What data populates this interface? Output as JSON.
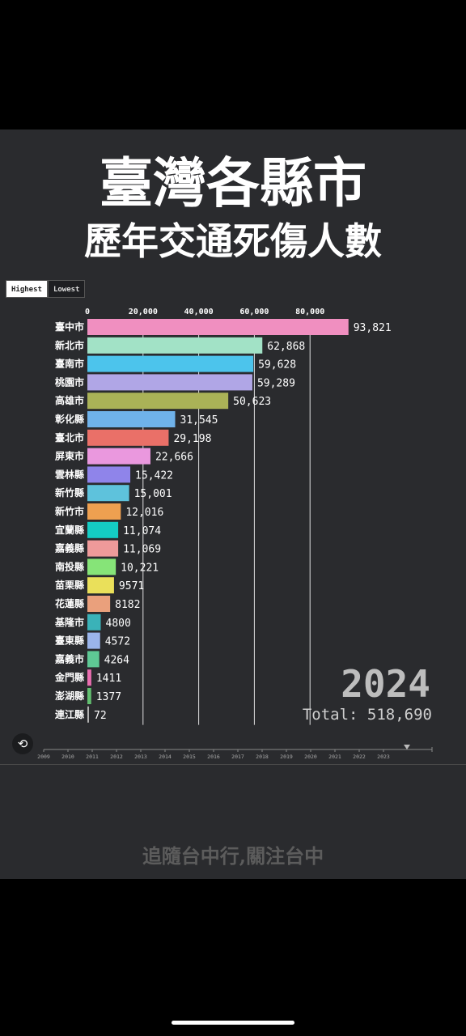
{
  "title_line1": "臺灣各縣市",
  "title_line2": "歷年交通死傷人數",
  "toggle": {
    "highest": "Highest",
    "lowest": "Lowest"
  },
  "year": "2024",
  "total": "Total: 518,690",
  "replay_icon": "replay-icon",
  "footer": "追隨台中行,關注台中",
  "chart_data": {
    "type": "bar",
    "orientation": "horizontal",
    "categories": [
      "臺中市",
      "新北市",
      "臺南市",
      "桃園市",
      "高雄市",
      "彰化縣",
      "臺北市",
      "屏東市",
      "雲林縣",
      "新竹縣",
      "新竹市",
      "宜蘭縣",
      "嘉義縣",
      "南投縣",
      "苗栗縣",
      "花蓮縣",
      "基隆市",
      "臺東縣",
      "嘉義市",
      "金門縣",
      "澎湖縣",
      "連江縣"
    ],
    "values": [
      93821,
      62868,
      59628,
      59289,
      50623,
      31545,
      29198,
      22666,
      15422,
      15001,
      12016,
      11074,
      11069,
      10221,
      9571,
      8182,
      4800,
      4572,
      4264,
      1411,
      1377,
      72
    ],
    "value_labels": [
      "93,821",
      "62,868",
      "59,628",
      "59,289",
      "50,623",
      "31,545",
      "29,198",
      "22,666",
      "15,422",
      "15,001",
      "12,016",
      "11,074",
      "11,069",
      "10,221",
      "9571",
      "8182",
      "4800",
      "4572",
      "4264",
      "1411",
      "1377",
      "72"
    ],
    "colors": [
      "#f08fc0",
      "#a2e2c6",
      "#4cc4ec",
      "#b0a6e6",
      "#aab257",
      "#6fb2ea",
      "#ea7068",
      "#ea98de",
      "#8f84ea",
      "#5ec2dc",
      "#eea050",
      "#14ccc4",
      "#ee9a9a",
      "#86e478",
      "#eae05a",
      "#eaa07c",
      "#3ab2b8",
      "#9ab4ea",
      "#5ec894",
      "#ea6eb0",
      "#62c070",
      "#b0b0b0"
    ],
    "x_ticks": [
      0,
      20000,
      40000,
      60000,
      80000
    ],
    "x_tick_labels": [
      "0",
      "20,000",
      "40,000",
      "60,000",
      "80,000"
    ],
    "xlim": [
      0,
      100000
    ],
    "grid": true,
    "timeline_years": [
      "2009",
      "2010",
      "2011",
      "2012",
      "2013",
      "2014",
      "2015",
      "2016",
      "2017",
      "2018",
      "2019",
      "2020",
      "2021",
      "2022",
      "2023"
    ]
  }
}
